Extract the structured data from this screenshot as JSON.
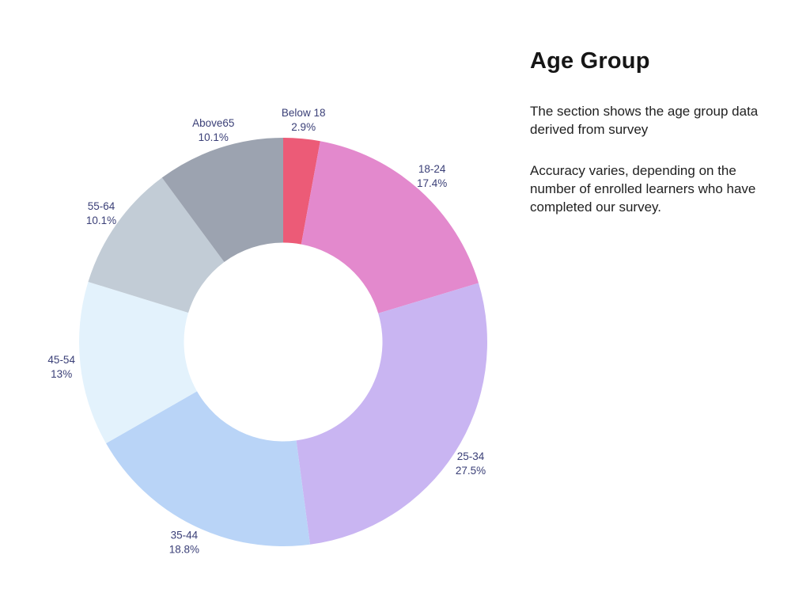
{
  "panel": {
    "title": "Age Group",
    "description_1": "The section shows the age group data derived from survey",
    "description_2": "Accuracy varies, depending on the number of enrolled learners who have completed our survey."
  },
  "colors": {
    "background": "#FFFFFF",
    "title_text": "#161616",
    "body_text": "#212121",
    "segment_label_text": "#3A3F77"
  },
  "chart_data": {
    "type": "pie",
    "subtype": "donut",
    "title": "Age Group",
    "legend_position": "labels-outside",
    "start_angle_deg": -90,
    "direction": "clockwise",
    "categories": [
      "Below 18",
      "18-24",
      "25-34",
      "35-44",
      "45-54",
      "55-64",
      "Above65"
    ],
    "values": [
      2.9,
      17.4,
      27.5,
      18.8,
      13,
      10.1,
      10.1
    ],
    "segments": [
      {
        "label": "Below 18",
        "value": 2.9,
        "display": "2.9%",
        "color": "#EC5B77"
      },
      {
        "label": "18-24",
        "value": 17.4,
        "display": "17.4%",
        "color": "#E389CD"
      },
      {
        "label": "25-34",
        "value": 27.5,
        "display": "27.5%",
        "color": "#C9B5F2"
      },
      {
        "label": "35-44",
        "value": 18.8,
        "display": "18.8%",
        "color": "#B9D4F7"
      },
      {
        "label": "45-54",
        "value": 13,
        "display": "13%",
        "color": "#E3F2FC"
      },
      {
        "label": "55-64",
        "value": 10.1,
        "display": "10.1%",
        "color": "#C2CCD6"
      },
      {
        "label": "Above65",
        "value": 10.1,
        "display": "10.1%",
        "color": "#9CA3B0"
      }
    ]
  }
}
